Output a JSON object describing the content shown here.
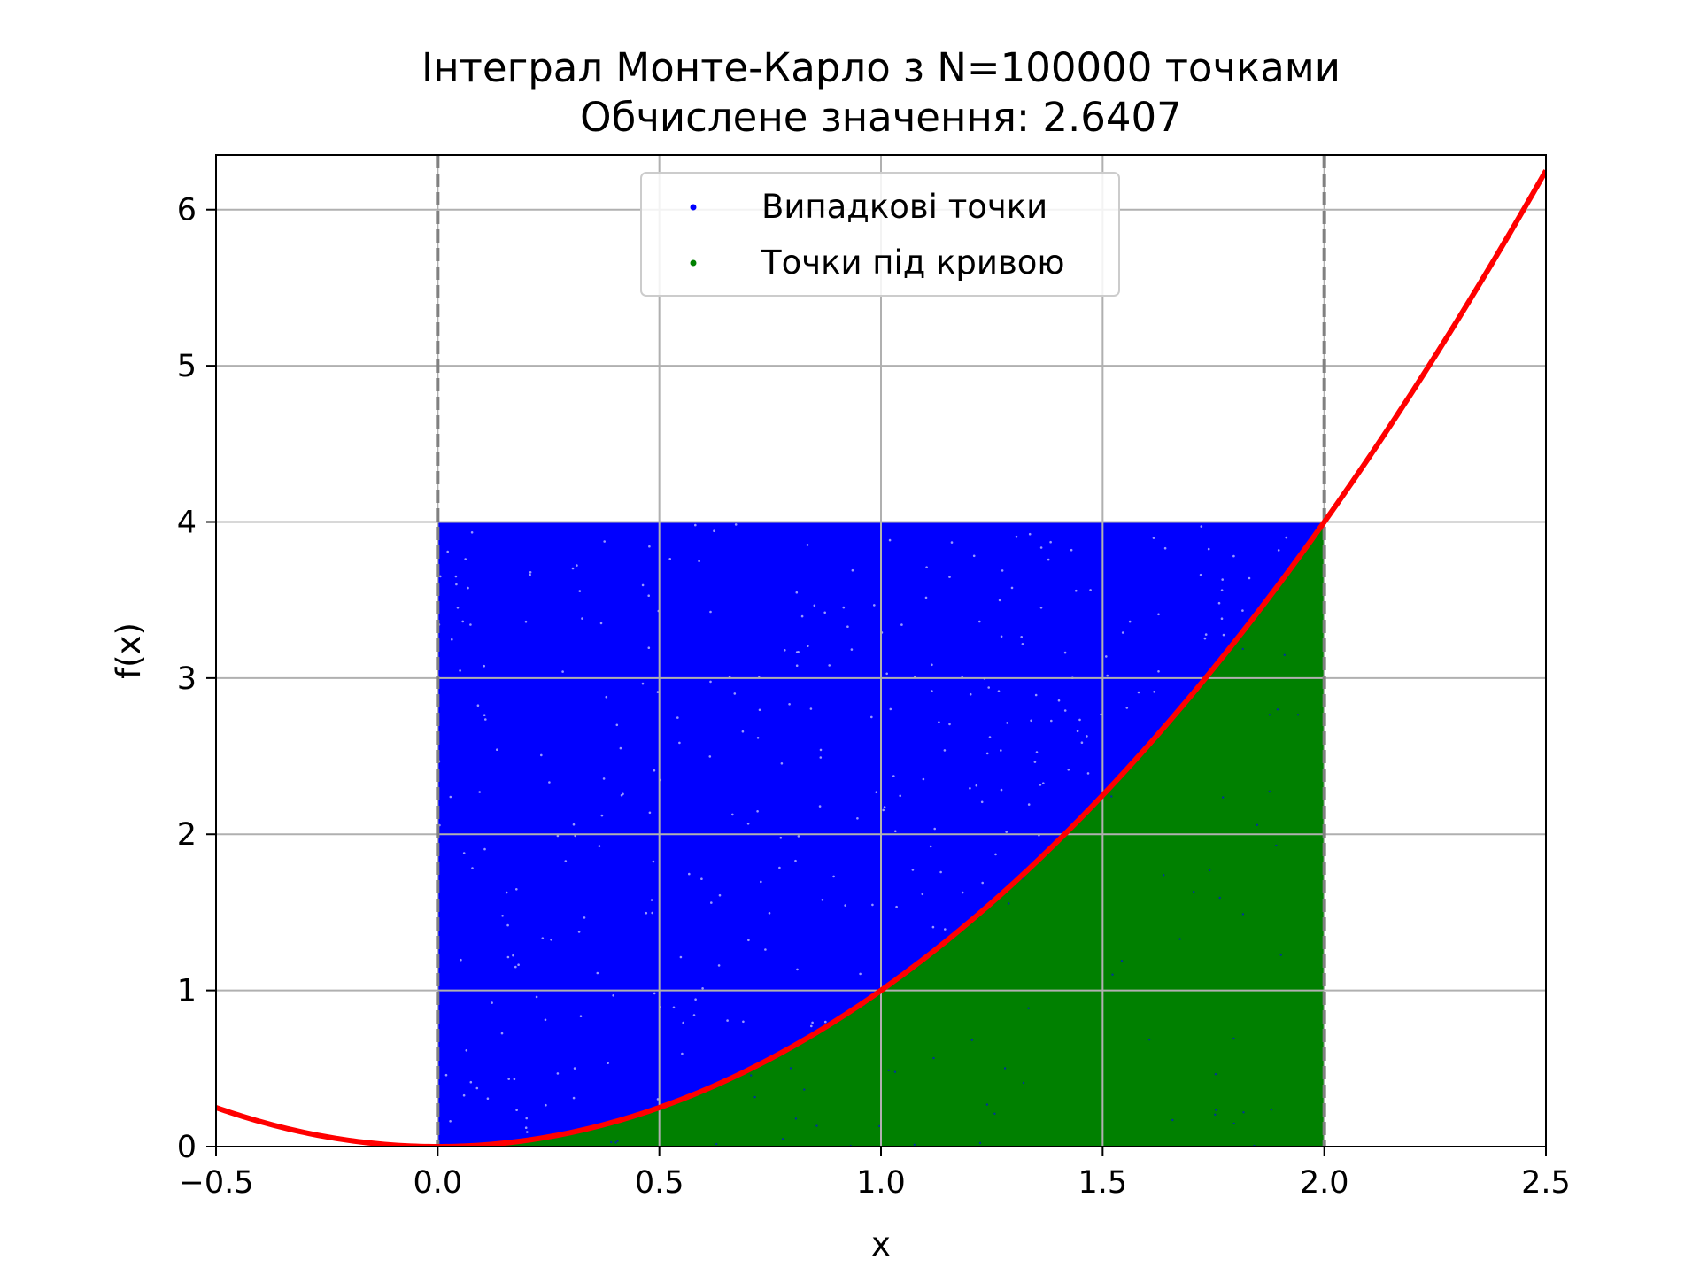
{
  "chart_data": {
    "type": "scatter",
    "title": "Інтеграл Монте-Карло з N=100000 точками",
    "subtitle": "Обчислене значення: 2.6407",
    "xlabel": "x",
    "ylabel": "f(x)",
    "xlim": [
      -0.5,
      2.5
    ],
    "ylim": [
      0,
      6.35
    ],
    "xticks": [
      -0.5,
      0.0,
      0.5,
      1.0,
      1.5,
      2.0,
      2.5
    ],
    "xtick_labels": [
      "−0.5",
      "0.0",
      "0.5",
      "1.0",
      "1.5",
      "2.0",
      "2.5"
    ],
    "yticks": [
      0,
      1,
      2,
      3,
      4,
      5,
      6
    ],
    "ytick_labels": [
      "0",
      "1",
      "2",
      "3",
      "4",
      "5",
      "6"
    ],
    "grid": true,
    "legend_position": "upper center",
    "integration_bounds": [
      0.0,
      2.0
    ],
    "sampling_box": {
      "x": [
        0.0,
        2.0
      ],
      "y": [
        0,
        4
      ]
    },
    "curve": {
      "function": "x^2",
      "x_range": [
        -0.5,
        2.5
      ],
      "color": "#ff0000"
    },
    "series": [
      {
        "name": "Випадкові точки",
        "color": "#0000ff",
        "region": "above curve"
      },
      {
        "name": "Точки під кривою",
        "color": "#008000",
        "region": "under curve"
      }
    ],
    "bound_line_color": "#808080"
  }
}
